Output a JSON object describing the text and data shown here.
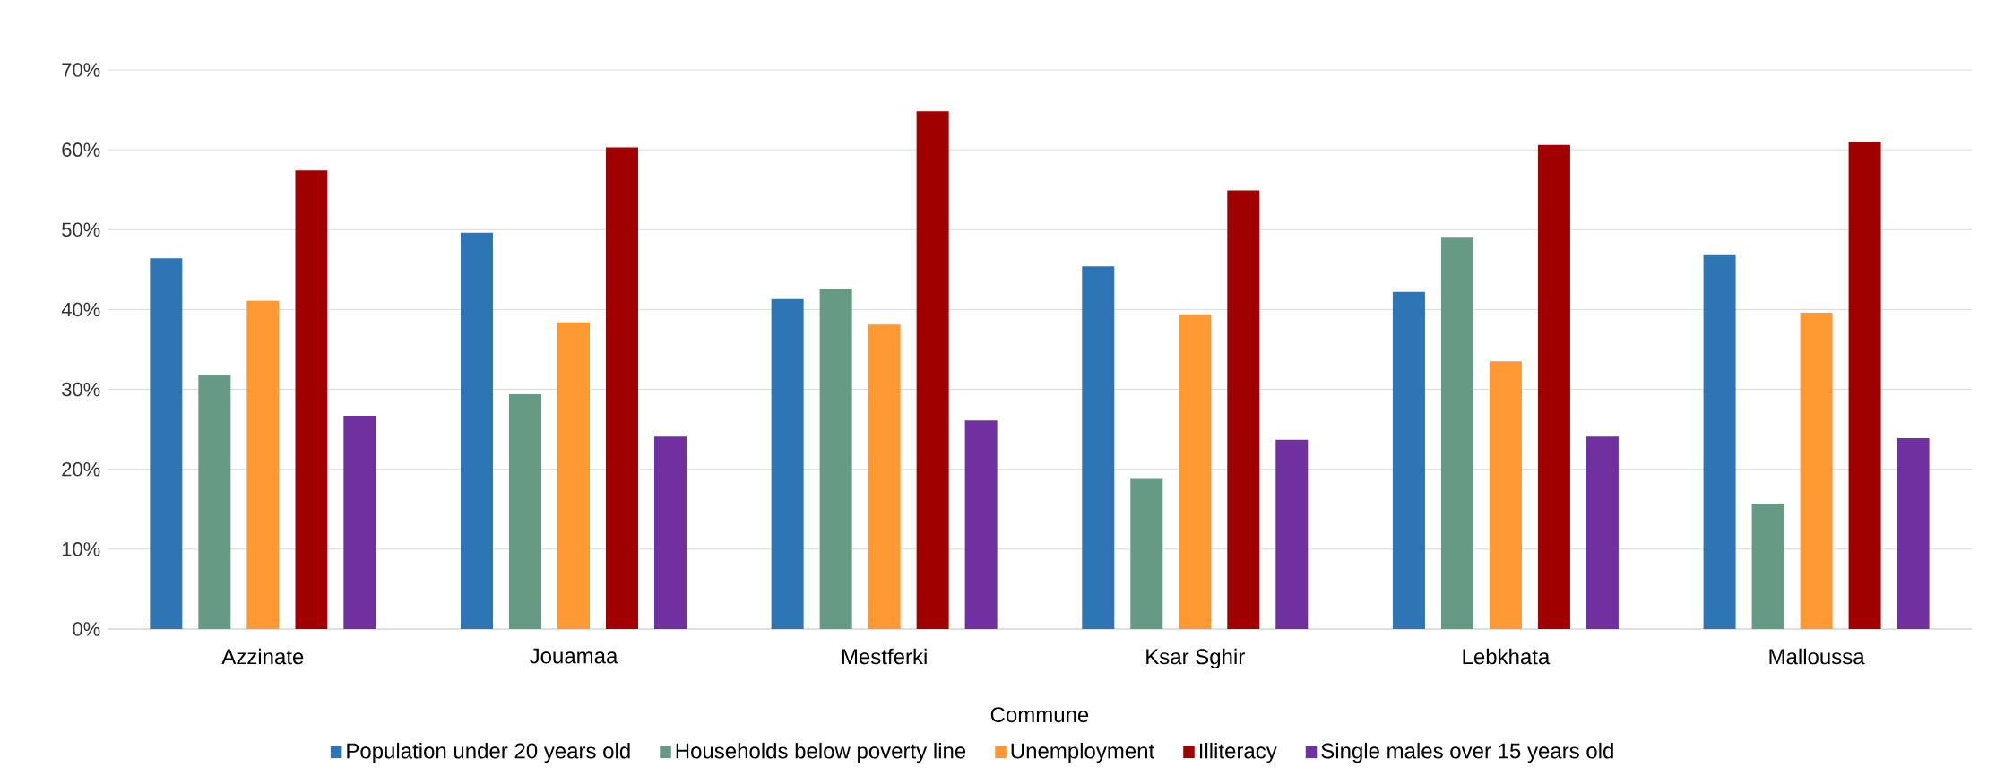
{
  "chart_data": {
    "type": "bar",
    "xlabel": "Commune",
    "categories": [
      "Azzinate",
      "Jouamaa",
      "Mestferki",
      "Ksar Sghir",
      "Lebkhata",
      "Malloussa"
    ],
    "series": [
      {
        "name": "Population under 20 years old",
        "color": "#2e75b6",
        "values": [
          46.4,
          49.6,
          41.3,
          45.4,
          42.2,
          46.8
        ]
      },
      {
        "name": "Households below poverty line",
        "color": "#669a85",
        "values": [
          31.8,
          29.4,
          42.6,
          18.9,
          49.0,
          15.7
        ]
      },
      {
        "name": "Unemployment",
        "color": "#ff9933",
        "values": [
          41.1,
          38.4,
          38.1,
          39.4,
          33.5,
          39.6
        ]
      },
      {
        "name": "Illiteracy",
        "color": "#a00000",
        "values": [
          57.4,
          60.3,
          64.8,
          54.9,
          60.6,
          61.0
        ]
      },
      {
        "name": "Single males over 15 years old",
        "color": "#7030a0",
        "values": [
          26.7,
          24.1,
          26.1,
          23.7,
          24.1,
          23.9
        ]
      }
    ],
    "ylim": [
      0,
      70
    ],
    "yticks": [
      {
        "value": 0,
        "label": "0%"
      },
      {
        "value": 10,
        "label": "10%"
      },
      {
        "value": 20,
        "label": "20%"
      },
      {
        "value": 30,
        "label": "30%"
      },
      {
        "value": 40,
        "label": "40%"
      },
      {
        "value": 50,
        "label": "50%"
      },
      {
        "value": 60,
        "label": "60%"
      },
      {
        "value": 70,
        "label": "70%"
      }
    ],
    "grid": "y",
    "legend": "bottom"
  }
}
